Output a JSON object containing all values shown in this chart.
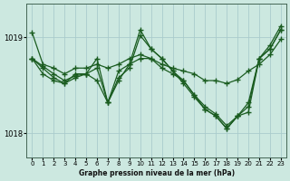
{
  "title": "Graphe pression niveau de la mer (hPa)",
  "background_color": "#cce8e0",
  "grid_color": "#aacccc",
  "line_color": "#1a5c20",
  "ylim": [
    1017.75,
    1019.35
  ],
  "xlim": [
    -0.5,
    23.5
  ],
  "yticks": [
    1018,
    1019
  ],
  "xticks": [
    0,
    1,
    2,
    3,
    4,
    5,
    6,
    7,
    8,
    9,
    10,
    11,
    12,
    13,
    14,
    15,
    16,
    17,
    18,
    19,
    20,
    21,
    22,
    23
  ],
  "series": [
    [
      1019.05,
      1018.72,
      1018.68,
      1018.62,
      1018.68,
      1018.68,
      1018.72,
      1018.68,
      1018.72,
      1018.78,
      1018.82,
      1018.78,
      1018.72,
      1018.68,
      1018.65,
      1018.62,
      1018.55,
      1018.55,
      1018.52,
      1018.56,
      1018.65,
      1018.72,
      1018.82,
      1018.98
    ],
    [
      1018.78,
      1018.7,
      1018.62,
      1018.55,
      1018.6,
      1018.62,
      1018.78,
      1018.32,
      1018.65,
      1018.72,
      1019.08,
      1018.88,
      1018.78,
      1018.65,
      1018.55,
      1018.4,
      1018.28,
      1018.2,
      1018.08,
      1018.18,
      1018.28,
      1018.78,
      1018.92,
      1019.12
    ],
    [
      1018.78,
      1018.68,
      1018.58,
      1018.52,
      1018.58,
      1018.62,
      1018.68,
      1018.32,
      1018.58,
      1018.68,
      1019.02,
      1018.88,
      1018.78,
      1018.65,
      1018.52,
      1018.38,
      1018.25,
      1018.18,
      1018.05,
      1018.18,
      1018.32,
      1018.78,
      1018.88,
      1019.08
    ],
    [
      1018.78,
      1018.62,
      1018.55,
      1018.52,
      1018.62,
      1018.62,
      1018.55,
      1018.32,
      1018.55,
      1018.72,
      1018.78,
      1018.78,
      1018.68,
      1018.62,
      1018.55,
      1018.4,
      1018.25,
      1018.18,
      1018.05,
      1018.18,
      1018.22,
      1018.78,
      1018.88,
      1019.08
    ]
  ]
}
